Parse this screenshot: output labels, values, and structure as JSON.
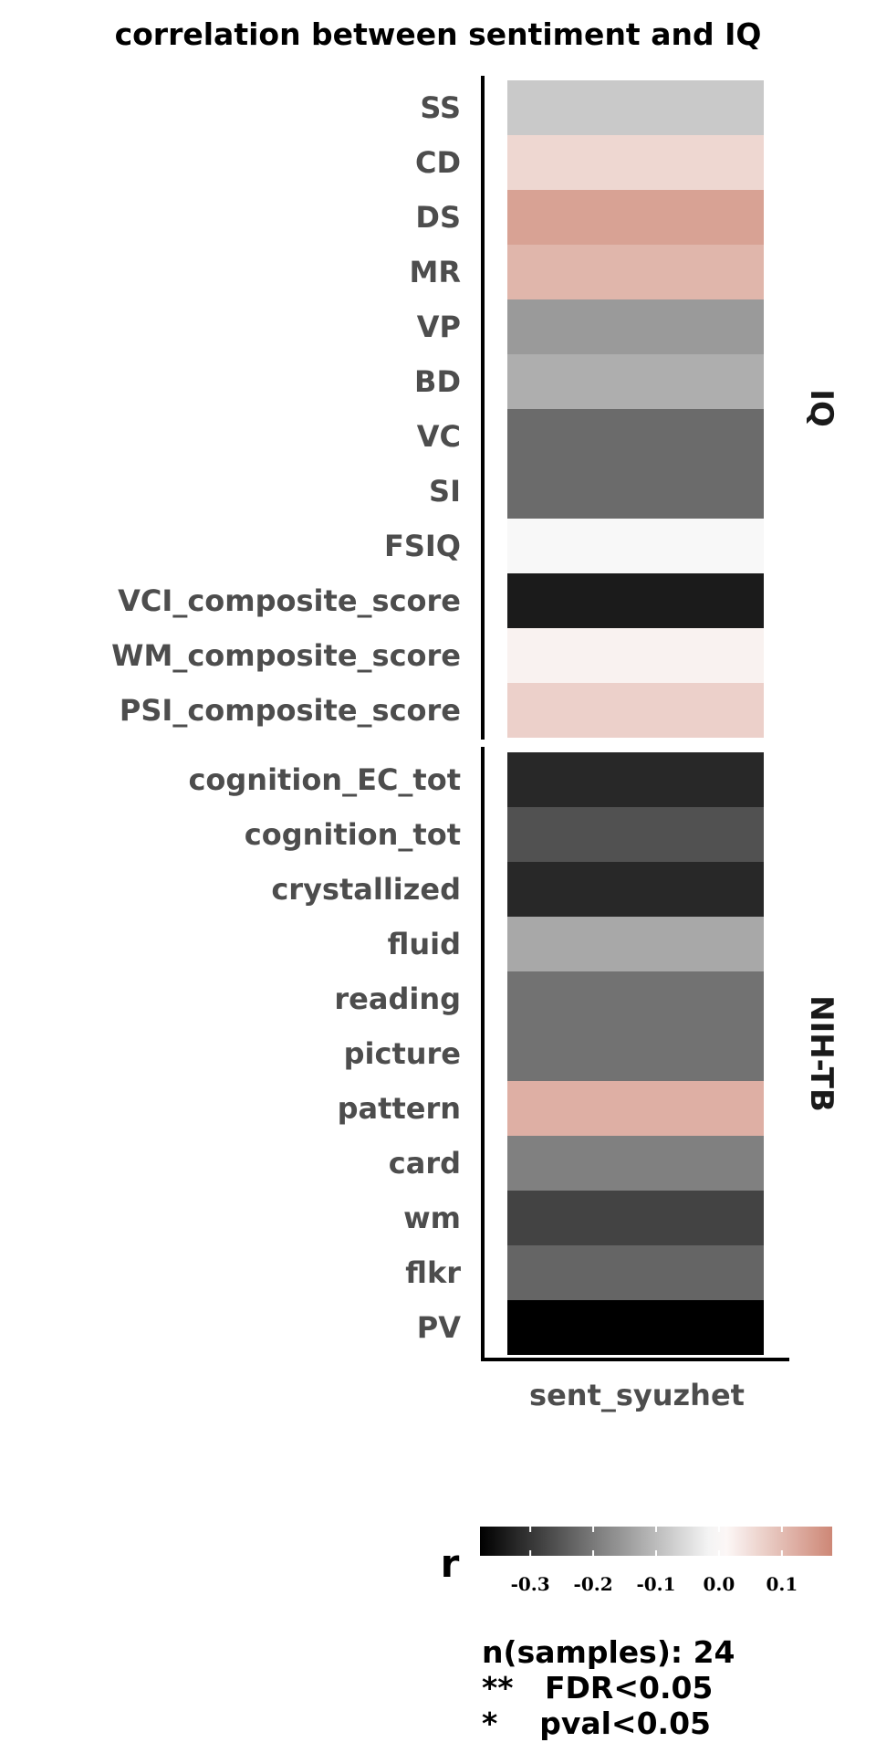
{
  "chart_data": {
    "type": "heatmap",
    "title": "correlation between sentiment and IQ",
    "x": [
      "sent_syuzhet"
    ],
    "panels": [
      {
        "name": "IQ",
        "rows": [
          "SS",
          "CD",
          "DS",
          "MR",
          "VP",
          "BD",
          "VC",
          "SI",
          "FSIQ",
          "VCI_composite_score",
          "WM_composite_score",
          "PSI_composite_score"
        ],
        "values": [
          -0.08,
          0.06,
          0.14,
          0.11,
          -0.15,
          -0.12,
          -0.22,
          -0.22,
          -0.01,
          -0.34,
          0.02,
          0.07
        ]
      },
      {
        "name": "NIH-TB",
        "rows": [
          "cognition_EC_tot",
          "cognition_tot",
          "crystallized",
          "fluid",
          "reading",
          "picture",
          "pattern",
          "card",
          "wm",
          "flkr",
          "PV"
        ],
        "values": [
          -0.32,
          -0.26,
          -0.32,
          -0.13,
          -0.21,
          -0.21,
          0.12,
          -0.19,
          -0.28,
          -0.23,
          -0.38
        ]
      }
    ],
    "legend": {
      "title": "r",
      "ticks": [
        -0.3,
        -0.2,
        -0.1,
        0.0,
        0.1
      ],
      "tick_labels": [
        "-0.3",
        "-0.2",
        "-0.1",
        "0.0",
        "0.1"
      ],
      "range": [
        -0.38,
        0.18
      ],
      "low_color": "#000000",
      "mid_color": "#ffffff",
      "high_color": "#cd8776"
    }
  },
  "notes": [
    "n(samples): 24",
    "**   FDR<0.05",
    "*    pval<0.05"
  ]
}
